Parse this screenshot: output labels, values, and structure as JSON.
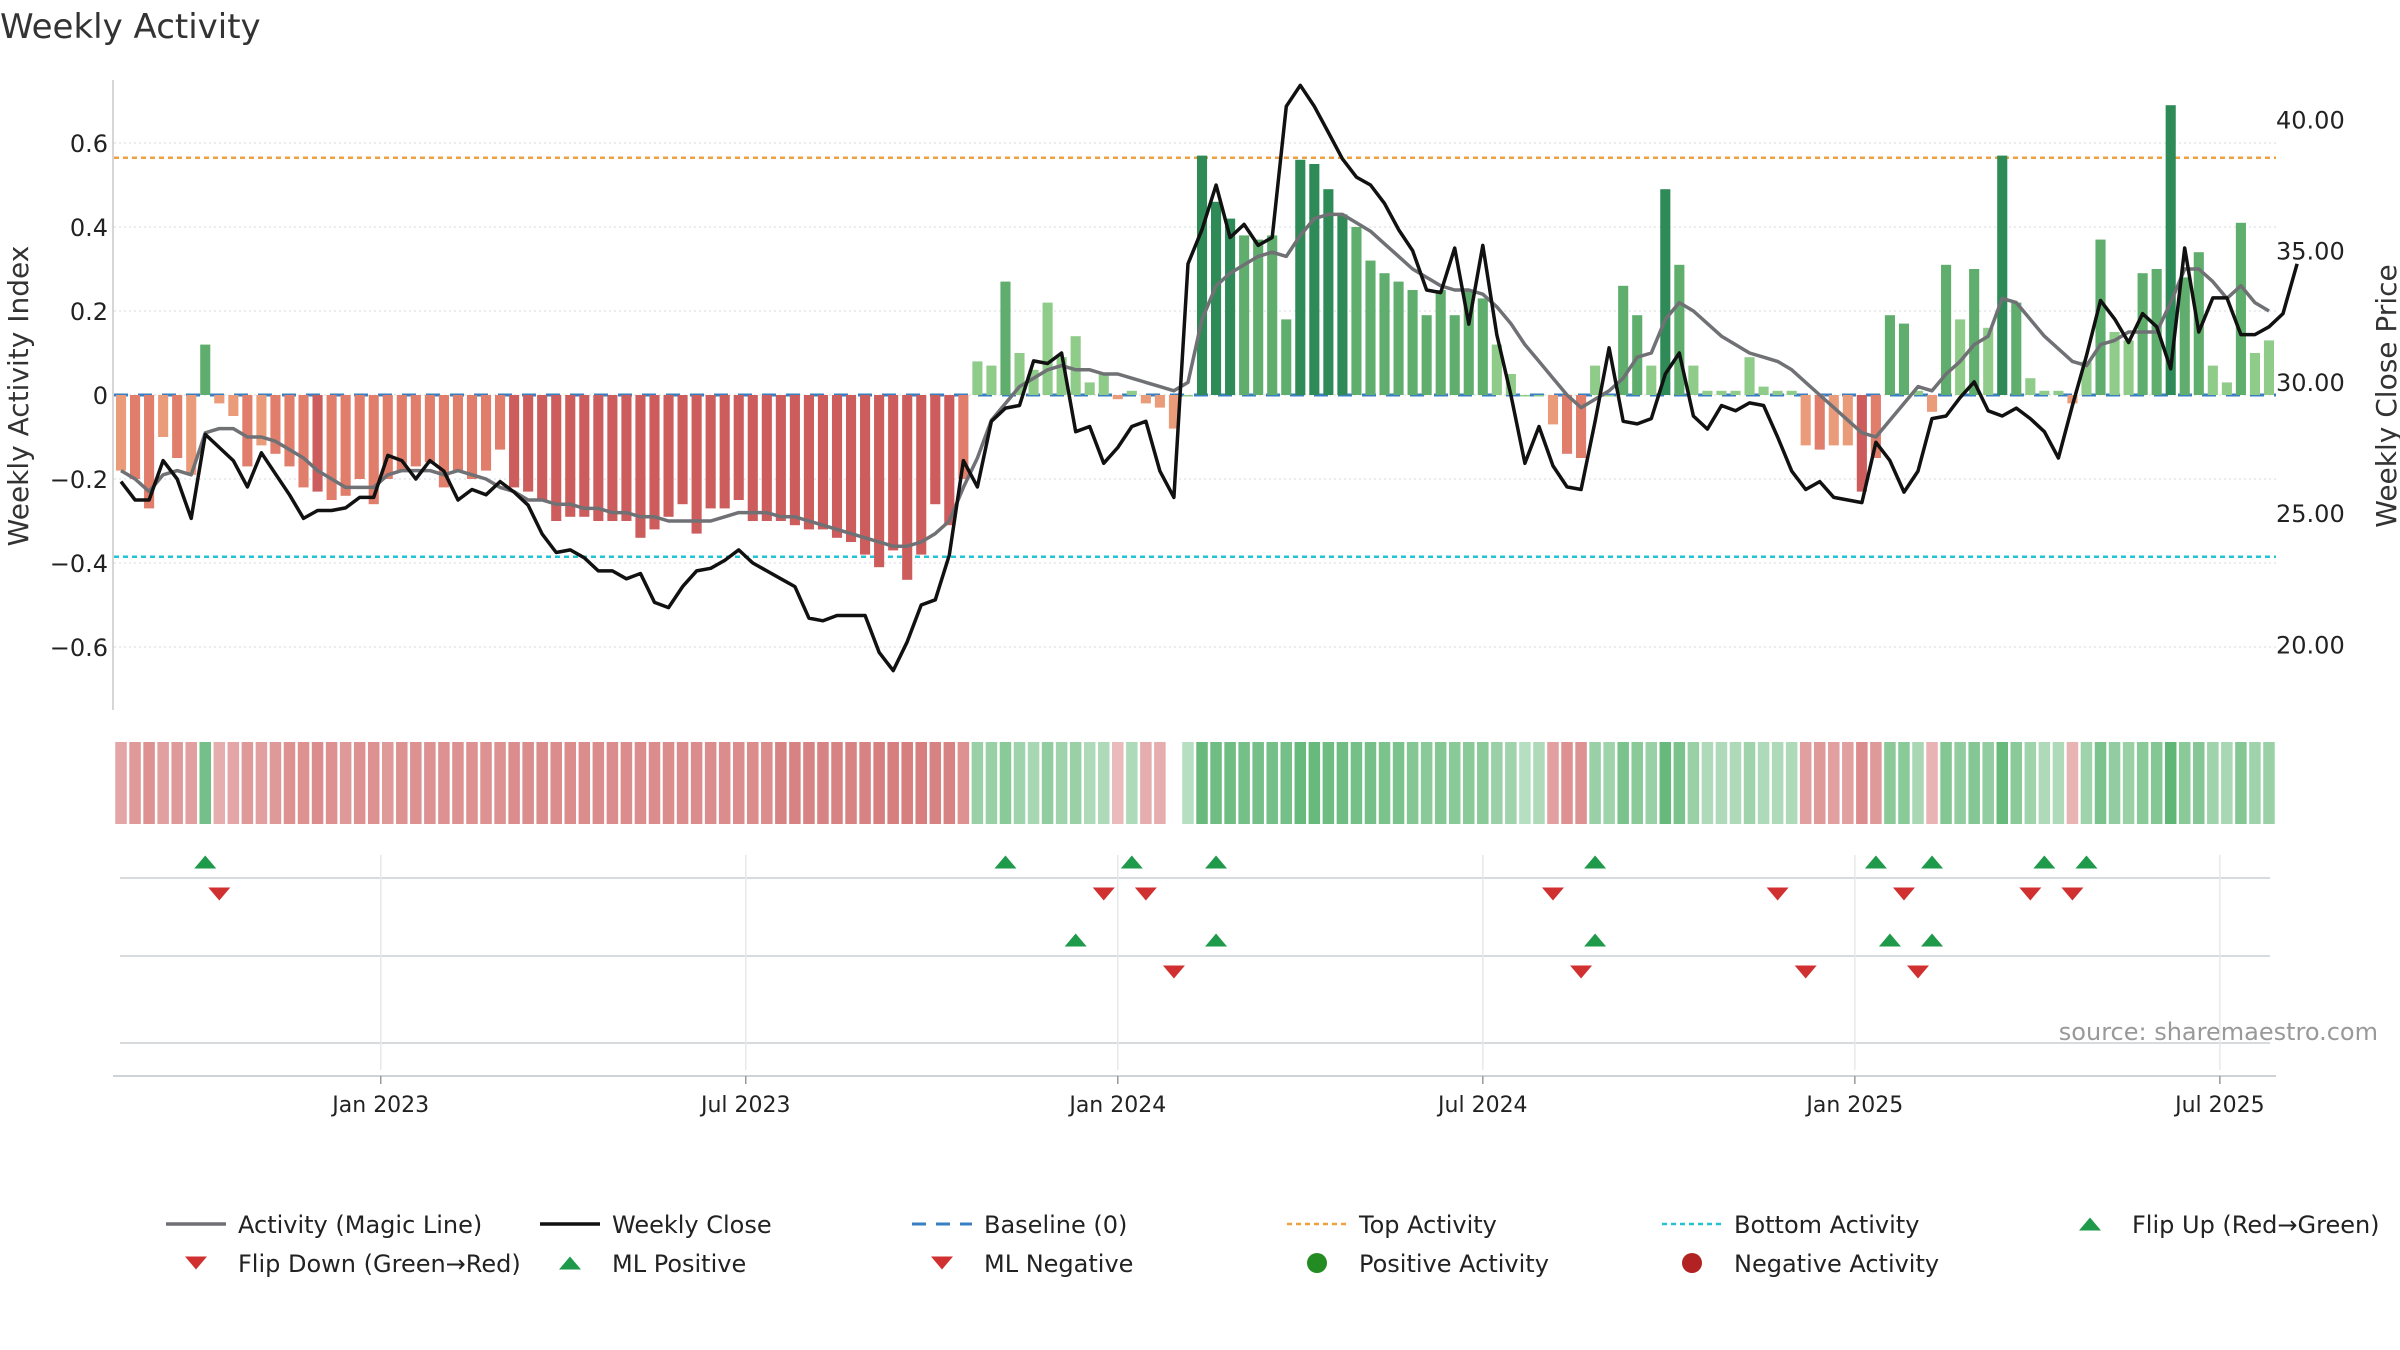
{
  "chart_data": {
    "type": "bar",
    "title": "Weekly Activity",
    "ylabel": "Weekly Activity Index",
    "ylabel_right": "Weekly Close Price",
    "source": "source: sharemaestro.com",
    "ylim": [
      -0.75,
      0.75
    ],
    "ylim_right": [
      17.5,
      41.5
    ],
    "y_ticks": [
      {
        "v": 0.6,
        "label": "0.6"
      },
      {
        "v": 0.4,
        "label": "0.4"
      },
      {
        "v": 0.2,
        "label": "0.2"
      },
      {
        "v": 0,
        "label": "0"
      },
      {
        "v": -0.2,
        "label": "−0.2"
      },
      {
        "v": -0.4,
        "label": "−0.4"
      },
      {
        "v": -0.6,
        "label": "−0.6"
      }
    ],
    "y_ticks_right": [
      {
        "v": 40,
        "label": "40.00"
      },
      {
        "v": 35,
        "label": "35.00"
      },
      {
        "v": 30,
        "label": "30.00"
      },
      {
        "v": 25,
        "label": "25.00"
      },
      {
        "v": 20,
        "label": "20.00"
      }
    ],
    "x_ticks": [
      {
        "i": 18.5,
        "label": "Jan 2023"
      },
      {
        "i": 44.5,
        "label": "Jul 2023"
      },
      {
        "i": 71,
        "label": "Jan 2024"
      },
      {
        "i": 97,
        "label": "Jul 2024"
      },
      {
        "i": 123.5,
        "label": "Jan 2025"
      },
      {
        "i": 149.5,
        "label": "Jul 2025"
      }
    ],
    "top_activity": 0.565,
    "bottom_activity": -0.385,
    "baseline": 0,
    "activity": [
      -0.18,
      -0.2,
      -0.27,
      -0.1,
      -0.15,
      -0.19,
      0.12,
      -0.02,
      -0.05,
      -0.17,
      -0.12,
      -0.14,
      -0.17,
      -0.22,
      -0.23,
      -0.25,
      -0.24,
      -0.2,
      -0.26,
      -0.2,
      -0.18,
      -0.17,
      -0.16,
      -0.22,
      -0.18,
      -0.2,
      -0.18,
      -0.13,
      -0.22,
      -0.23,
      -0.25,
      -0.3,
      -0.29,
      -0.29,
      -0.3,
      -0.3,
      -0.3,
      -0.34,
      -0.32,
      -0.29,
      -0.26,
      -0.33,
      -0.27,
      -0.27,
      -0.25,
      -0.3,
      -0.3,
      -0.3,
      -0.31,
      -0.32,
      -0.32,
      -0.34,
      -0.35,
      -0.38,
      -0.41,
      -0.37,
      -0.44,
      -0.38,
      -0.26,
      -0.31,
      -0.2,
      0.08,
      0.07,
      0.27,
      0.1,
      0.06,
      0.22,
      0.09,
      0.14,
      0.03,
      0.05,
      -0.01,
      0.01,
      -0.02,
      -0.03,
      -0.08,
      0.0,
      0.57,
      0.46,
      0.42,
      0.38,
      0.37,
      0.38,
      0.18,
      0.56,
      0.55,
      0.49,
      0.43,
      0.4,
      0.32,
      0.29,
      0.27,
      0.25,
      0.19,
      0.25,
      0.19,
      0.25,
      0.23,
      0.12,
      0.05,
      0.0,
      0.0,
      -0.07,
      -0.14,
      -0.15,
      0.07,
      0.0,
      0.26,
      0.19,
      0.07,
      0.49,
      0.31,
      0.07,
      0.01,
      0.01,
      0.01,
      0.09,
      0.02,
      0.01,
      0.01,
      -0.12,
      -0.13,
      -0.12,
      -0.12,
      -0.23,
      -0.15,
      0.19,
      0.17,
      0.01,
      -0.04,
      0.31,
      0.18,
      0.3,
      0.16,
      0.57,
      0.22,
      0.04,
      0.01,
      0.01,
      -0.02,
      0.08,
      0.37,
      0.15,
      0.13,
      0.29,
      0.3,
      0.69,
      0.28,
      0.34,
      0.07,
      0.03,
      0.41,
      0.1,
      0.13
    ],
    "activity_strength": [
      0.45,
      0.55,
      0.6,
      0.5,
      0.55,
      0.5,
      0.75,
      0.4,
      0.45,
      0.55,
      0.5,
      0.55,
      0.6,
      0.6,
      0.65,
      0.6,
      0.55,
      0.6,
      0.6,
      0.55,
      0.6,
      0.6,
      0.6,
      0.6,
      0.6,
      0.6,
      0.6,
      0.6,
      0.65,
      0.65,
      0.65,
      0.65,
      0.65,
      0.65,
      0.65,
      0.65,
      0.65,
      0.65,
      0.65,
      0.65,
      0.65,
      0.65,
      0.65,
      0.65,
      0.65,
      0.65,
      0.65,
      0.7,
      0.7,
      0.7,
      0.7,
      0.7,
      0.7,
      0.7,
      0.75,
      0.75,
      0.75,
      0.75,
      0.7,
      0.7,
      0.6,
      0.5,
      0.5,
      0.6,
      0.45,
      0.4,
      0.55,
      0.45,
      0.5,
      0.35,
      0.35,
      0.3,
      0.35,
      0.4,
      0.4,
      0.45,
      0.3,
      0.85,
      0.8,
      0.8,
      0.75,
      0.75,
      0.75,
      0.75,
      0.85,
      0.85,
      0.8,
      0.8,
      0.75,
      0.75,
      0.7,
      0.7,
      0.65,
      0.6,
      0.65,
      0.6,
      0.6,
      0.6,
      0.5,
      0.45,
      0.3,
      0.35,
      0.5,
      0.6,
      0.6,
      0.5,
      0.45,
      0.7,
      0.6,
      0.5,
      0.85,
      0.7,
      0.5,
      0.35,
      0.35,
      0.35,
      0.45,
      0.35,
      0.35,
      0.35,
      0.5,
      0.55,
      0.5,
      0.5,
      0.65,
      0.55,
      0.6,
      0.6,
      0.4,
      0.35,
      0.65,
      0.55,
      0.65,
      0.55,
      0.85,
      0.6,
      0.45,
      0.35,
      0.35,
      0.35,
      0.45,
      0.7,
      0.55,
      0.5,
      0.6,
      0.65,
      0.9,
      0.6,
      0.65,
      0.45,
      0.4,
      0.65,
      0.45,
      0.5
    ],
    "magic_line": [
      -0.18,
      -0.2,
      -0.23,
      -0.19,
      -0.18,
      -0.19,
      -0.09,
      -0.08,
      -0.08,
      -0.1,
      -0.1,
      -0.11,
      -0.13,
      -0.15,
      -0.18,
      -0.2,
      -0.22,
      -0.22,
      -0.22,
      -0.19,
      -0.18,
      -0.18,
      -0.18,
      -0.19,
      -0.18,
      -0.19,
      -0.2,
      -0.22,
      -0.23,
      -0.25,
      -0.25,
      -0.26,
      -0.26,
      -0.27,
      -0.27,
      -0.28,
      -0.28,
      -0.29,
      -0.29,
      -0.3,
      -0.3,
      -0.3,
      -0.3,
      -0.29,
      -0.28,
      -0.28,
      -0.28,
      -0.29,
      -0.29,
      -0.3,
      -0.31,
      -0.32,
      -0.33,
      -0.34,
      -0.35,
      -0.36,
      -0.36,
      -0.35,
      -0.33,
      -0.3,
      -0.22,
      -0.15,
      -0.06,
      -0.02,
      0.02,
      0.04,
      0.06,
      0.07,
      0.06,
      0.06,
      0.05,
      0.05,
      0.04,
      0.03,
      0.02,
      0.01,
      0.03,
      0.18,
      0.26,
      0.29,
      0.31,
      0.33,
      0.34,
      0.33,
      0.38,
      0.42,
      0.43,
      0.43,
      0.41,
      0.39,
      0.36,
      0.33,
      0.3,
      0.28,
      0.26,
      0.25,
      0.25,
      0.24,
      0.21,
      0.17,
      0.12,
      0.08,
      0.04,
      0.0,
      -0.03,
      -0.01,
      0.01,
      0.04,
      0.09,
      0.1,
      0.18,
      0.22,
      0.2,
      0.17,
      0.14,
      0.12,
      0.1,
      0.09,
      0.08,
      0.06,
      0.03,
      0.0,
      -0.03,
      -0.06,
      -0.09,
      -0.1,
      -0.06,
      -0.02,
      0.02,
      0.01,
      0.05,
      0.08,
      0.12,
      0.14,
      0.23,
      0.22,
      0.18,
      0.14,
      0.11,
      0.08,
      0.07,
      0.12,
      0.13,
      0.15,
      0.15,
      0.15,
      0.22,
      0.3,
      0.3,
      0.27,
      0.23,
      0.26,
      0.22,
      0.2
    ],
    "weekly_close": [
      26.2,
      25.5,
      25.5,
      27.0,
      26.3,
      24.8,
      28.0,
      27.5,
      27.0,
      26.0,
      27.3,
      26.5,
      25.7,
      24.8,
      25.1,
      25.1,
      25.2,
      25.6,
      25.6,
      27.2,
      27.0,
      26.3,
      27.0,
      26.6,
      25.5,
      25.9,
      25.7,
      26.2,
      25.8,
      25.3,
      24.2,
      23.5,
      23.6,
      23.3,
      22.8,
      22.8,
      22.5,
      22.7,
      21.6,
      21.4,
      22.2,
      22.8,
      22.9,
      23.2,
      23.6,
      23.1,
      22.8,
      22.5,
      22.2,
      21.0,
      20.9,
      21.1,
      21.1,
      21.1,
      19.7,
      19.0,
      20.1,
      21.5,
      21.7,
      23.4,
      27.0,
      26.0,
      28.5,
      29.0,
      29.1,
      30.8,
      30.7,
      31.1,
      28.1,
      28.3,
      26.9,
      27.5,
      28.3,
      28.5,
      26.6,
      25.6,
      34.5,
      35.8,
      37.5,
      35.5,
      36.0,
      35.2,
      35.5,
      40.5,
      41.3,
      40.5,
      39.5,
      38.5,
      37.8,
      37.5,
      36.8,
      35.8,
      35.0,
      33.5,
      33.4,
      35.1,
      32.2,
      35.2,
      31.8,
      29.5,
      26.9,
      28.3,
      26.8,
      26.0,
      25.9,
      28.5,
      31.3,
      28.5,
      28.4,
      28.6,
      30.3,
      31.1,
      28.7,
      28.2,
      29.1,
      28.9,
      29.2,
      29.1,
      27.9,
      26.6,
      25.9,
      26.2,
      25.6,
      25.5,
      25.4,
      27.7,
      27.0,
      25.8,
      26.6,
      28.6,
      28.7,
      29.4,
      30.0,
      28.9,
      28.7,
      29.0,
      28.6,
      28.1,
      27.1,
      29.1,
      31.0,
      33.1,
      32.4,
      31.5,
      32.6,
      32.1,
      30.5,
      35.1,
      31.9,
      33.2,
      33.2,
      31.8,
      31.8,
      32.1,
      32.6,
      34.5
    ],
    "heat_gap_index": 75,
    "signals": {
      "flip_up": [
        6,
        63,
        72,
        78,
        105,
        125,
        129,
        137,
        140
      ],
      "flip_down": [
        7,
        70,
        73,
        102,
        118,
        127,
        136,
        139
      ],
      "ml_positive": [
        68,
        78,
        105,
        126,
        129
      ],
      "ml_negative": [
        75,
        104,
        120,
        128
      ]
    },
    "series": [
      {
        "name": "Activity (Magic Line)",
        "color": "#6f7175"
      },
      {
        "name": "Weekly Close",
        "color": "#111111"
      },
      {
        "name": "Baseline (0)",
        "color": "#3a7fc2"
      },
      {
        "name": "Top Activity",
        "color": "#f0a040"
      },
      {
        "name": "Bottom Activity",
        "color": "#22c3d4"
      },
      {
        "name": "Flip Up (Red→Green)",
        "color": "#1e9a4a"
      },
      {
        "name": "Flip Down (Green→Red)",
        "color": "#d03030"
      },
      {
        "name": "ML Positive",
        "color": "#1e9a4a"
      },
      {
        "name": "ML Negative",
        "color": "#d03030"
      },
      {
        "name": "Positive Activity",
        "color": "#228b22"
      },
      {
        "name": "Negative Activity",
        "color": "#b22222"
      }
    ]
  }
}
